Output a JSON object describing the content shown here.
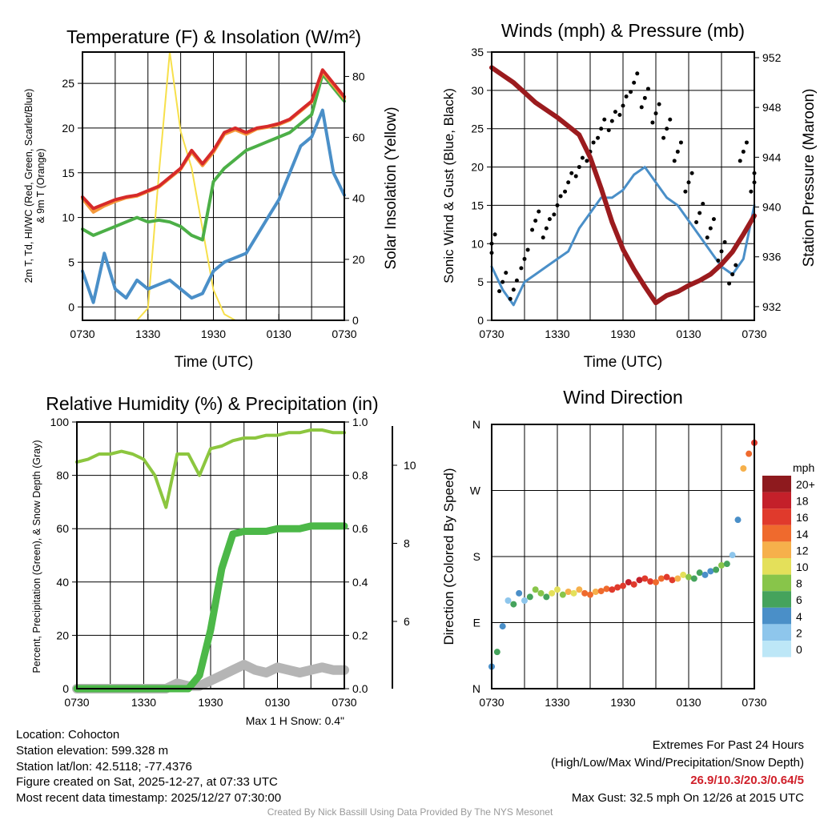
{
  "chart_data": [
    {
      "id": "temp",
      "type": "line",
      "title": "Temperature (F) & Insolation (W/m²)",
      "xlabel": "Time (UTC)",
      "ylabel_line1": "2m T, Td, HI/WC (Red, Green, Scarlet/Blue)",
      "ylabel_line2": "& 9m T (Orange)",
      "y2label": "Solar Insolation (Yellow)",
      "x_hours": [
        0,
        1,
        2,
        3,
        4,
        5,
        6,
        7,
        8,
        9,
        10,
        11,
        12,
        13,
        14,
        15,
        16,
        17,
        18,
        19,
        20,
        21,
        22,
        23,
        24
      ],
      "xticks": [
        "0730",
        "1330",
        "1930",
        "0130",
        "0730"
      ],
      "ylim": [
        -1.5,
        28.5
      ],
      "yticks": [
        0,
        5,
        10,
        15,
        20,
        25
      ],
      "y2lim": [
        0,
        88
      ],
      "y2ticks": [
        0,
        20,
        40,
        60,
        80
      ],
      "series": [
        {
          "name": "Solar Insolation",
          "axis": "y2",
          "color": "#f7e04b",
          "width": 2,
          "values": [
            0,
            0,
            0,
            0,
            0,
            0,
            4,
            48,
            88,
            62,
            50,
            30,
            10,
            2,
            0,
            0,
            0,
            0,
            0,
            0,
            0,
            0,
            0,
            0,
            0
          ]
        },
        {
          "name": "HI/WC",
          "axis": "y",
          "color": "#4a8fc8",
          "width": 4,
          "values": [
            4,
            0.5,
            6,
            2,
            1,
            3,
            2,
            2.5,
            3,
            2,
            1,
            1.5,
            4,
            5,
            5.5,
            6,
            8,
            10,
            12,
            15,
            18,
            19,
            22,
            15,
            12.5
          ]
        },
        {
          "name": "Dewpoint",
          "axis": "y",
          "color": "#4caf47",
          "width": 4,
          "values": [
            8.7,
            8,
            8.5,
            9,
            9.5,
            10,
            9.5,
            9.7,
            9.5,
            9,
            8,
            7.5,
            14,
            15.5,
            16.5,
            17.5,
            18,
            18.5,
            19,
            19.5,
            20.5,
            21.5,
            26,
            24.5,
            23
          ]
        },
        {
          "name": "9m Temperature",
          "axis": "y",
          "color": "#f59a3c",
          "width": 4,
          "values": [
            12.1,
            10.6,
            11.3,
            11.8,
            12.2,
            12.4,
            12.9,
            13.4,
            14.4,
            15.4,
            17.3,
            15.8,
            17.3,
            19.3,
            19.8,
            19.3,
            19.9,
            20.1,
            20.4,
            20.9,
            21.9,
            22.9,
            26.3,
            24.8,
            23.3
          ]
        },
        {
          "name": "Temperature",
          "axis": "y",
          "color": "#d62a2a",
          "width": 4,
          "values": [
            12.3,
            11,
            11.5,
            12,
            12.3,
            12.5,
            13,
            13.5,
            14.5,
            15.5,
            17.5,
            16,
            17.5,
            19.5,
            20,
            19.5,
            20,
            20.2,
            20.5,
            21,
            22,
            23,
            26.5,
            25,
            23.5
          ]
        }
      ]
    },
    {
      "id": "wind",
      "type": "line",
      "title": "Winds (mph) & Pressure (mb)",
      "xlabel": "Time (UTC)",
      "ylabel": "Sonic Wind & Gust (Blue, Black)",
      "y2label": "Station Pressure (Maroon)",
      "x_hours": [
        0,
        1,
        2,
        3,
        4,
        5,
        6,
        7,
        8,
        9,
        10,
        11,
        12,
        13,
        14,
        15,
        16,
        17,
        18,
        19,
        20,
        21,
        22,
        23,
        24
      ],
      "xticks": [
        "0730",
        "1330",
        "1930",
        "0130",
        "0730"
      ],
      "ylim": [
        0,
        35
      ],
      "yticks": [
        0,
        5,
        10,
        15,
        20,
        25,
        30,
        35
      ],
      "y2lim": [
        930.9,
        952.45
      ],
      "y2ticks": [
        932,
        936,
        940,
        944,
        948,
        952
      ],
      "series": [
        {
          "name": "Sonic Wind",
          "axis": "y",
          "color": "#4a8fc8",
          "width": 3,
          "style": "line",
          "values": [
            7,
            4,
            2,
            5,
            6,
            7,
            8,
            9,
            12,
            14,
            16,
            16,
            17,
            19,
            20,
            18,
            16,
            15,
            13,
            11,
            9,
            7,
            6,
            8,
            15
          ]
        },
        {
          "name": "Gust",
          "axis": "y",
          "color": "#000000",
          "width": 4,
          "style": "dots",
          "values": [
            10,
            5,
            4,
            8,
            13,
            12,
            15,
            18,
            20,
            22,
            25,
            26,
            28,
            31,
            29,
            27,
            25,
            22,
            18,
            14,
            12,
            9,
            6,
            22,
            18
          ]
        },
        {
          "name": "Station Pressure",
          "axis": "y2",
          "color": "#9b1b1e",
          "width": 6,
          "style": "line",
          "values": [
            951.2,
            950.6,
            950,
            949.2,
            948.4,
            947.8,
            947.2,
            946.5,
            945.8,
            944,
            941.5,
            938.8,
            936.6,
            935,
            933.6,
            932.3,
            932.9,
            933.2,
            933.7,
            934.1,
            934.6,
            935.4,
            936.4,
            937.8,
            939.3
          ]
        }
      ]
    },
    {
      "id": "rh",
      "type": "line",
      "title": "Relative Humidity (%) & Precipitation (in)",
      "ylabel": "Percent, Precipitation (Green), & Snow Depth (Gray)",
      "x_hours": [
        0,
        1,
        2,
        3,
        4,
        5,
        6,
        7,
        8,
        9,
        10,
        11,
        12,
        13,
        14,
        15,
        16,
        17,
        18,
        19,
        20,
        21,
        22,
        23,
        24
      ],
      "xticks": [
        "0730",
        "1330",
        "1930",
        "0130",
        "0730"
      ],
      "ylim": [
        0,
        100
      ],
      "yticks": [
        0,
        20,
        40,
        60,
        80,
        100
      ],
      "y2lim": [
        0,
        1.0
      ],
      "y2ticks": [
        "0.0",
        "0.2",
        "0.4",
        "0.6",
        "0.8",
        "1.0"
      ],
      "y3ticks": [
        6,
        8,
        10
      ],
      "note": "Max 1 H Snow: 0.4\"",
      "series": [
        {
          "name": "Snow Depth",
          "axis": "y",
          "color": "#b5b5b5",
          "width": 12,
          "values": [
            0,
            0,
            0,
            0,
            0,
            0,
            0,
            0,
            0,
            2,
            1,
            1,
            3,
            5,
            7,
            9,
            7,
            6,
            8,
            7,
            6,
            7,
            8,
            7,
            7
          ]
        },
        {
          "name": "Relative Humidity",
          "axis": "y",
          "color": "#8cc63f",
          "width": 4,
          "values": [
            85,
            86,
            88,
            88,
            89,
            88,
            86,
            80,
            68,
            88,
            88,
            80,
            90,
            91,
            93,
            94,
            94,
            95,
            95,
            96,
            96,
            97,
            97,
            96,
            96
          ]
        },
        {
          "name": "Precipitation",
          "axis": "y2",
          "color": "#4cb848",
          "width": 9,
          "values": [
            0,
            0,
            0,
            0,
            0,
            0,
            0,
            0,
            0,
            0,
            0,
            0.05,
            0.22,
            0.45,
            0.58,
            0.59,
            0.59,
            0.59,
            0.6,
            0.6,
            0.6,
            0.61,
            0.61,
            0.61,
            0.61
          ]
        }
      ]
    },
    {
      "id": "dir",
      "type": "scatter",
      "title": "Wind Direction",
      "ylabel": "Direction (Colored By Speed)",
      "xticks": [
        "0730",
        "1330",
        "1930",
        "0130",
        "0730"
      ],
      "ylim": [
        0,
        360
      ],
      "ylabels": [
        "N",
        "E",
        "S",
        "W",
        "N"
      ],
      "legend_title": "mph",
      "legend_labels": [
        "20+",
        "18",
        "16",
        "14",
        "12",
        "10",
        "8",
        "6",
        "4",
        "2",
        "0"
      ],
      "legend_colors": [
        "#8e1a1e",
        "#c4202a",
        "#e03a2c",
        "#ef6a2d",
        "#f6b04b",
        "#e4e05a",
        "#88c54a",
        "#45a35c",
        "#4a8fc8",
        "#8ec6ec",
        "#bde7f7"
      ],
      "x_hours": [
        0,
        0.5,
        1,
        1.5,
        2,
        2.5,
        3,
        3.5,
        4,
        4.5,
        5,
        5.5,
        6,
        6.5,
        7,
        7.5,
        8,
        8.5,
        9,
        9.5,
        10,
        10.5,
        11,
        11.5,
        12,
        12.5,
        13,
        13.5,
        14,
        14.5,
        15,
        15.5,
        16,
        16.5,
        17,
        17.5,
        18,
        18.5,
        19,
        19.5,
        20,
        20.5,
        21,
        21.5,
        22,
        22.5,
        23,
        23.5,
        24
      ],
      "directions": [
        30,
        50,
        85,
        120,
        115,
        130,
        120,
        125,
        135,
        130,
        125,
        130,
        135,
        128,
        132,
        130,
        135,
        130,
        128,
        132,
        133,
        136,
        135,
        138,
        140,
        145,
        142,
        148,
        150,
        146,
        145,
        150,
        152,
        148,
        150,
        155,
        152,
        150,
        158,
        155,
        160,
        162,
        168,
        170,
        182,
        230,
        300,
        320,
        335
      ],
      "speeds": [
        5,
        6,
        4,
        2,
        6,
        4,
        3,
        7,
        8,
        9,
        7,
        10,
        11,
        9,
        12,
        10,
        13,
        14,
        15,
        12,
        14,
        15,
        16,
        17,
        16,
        18,
        17,
        18,
        17,
        16,
        14,
        15,
        17,
        16,
        13,
        10,
        8,
        7,
        6,
        5,
        4,
        7,
        8,
        6,
        3,
        4,
        12,
        15,
        16
      ]
    }
  ],
  "info": {
    "location": "Location: Cohocton",
    "elevation": "Station elevation: 599.328 m",
    "latlon": "Station lat/lon: 42.5118; -77.4376",
    "created": "Figure created on Sat, 2025-12-27, at 07:33 UTC",
    "recent": "Most recent data timestamp: 2025/12/27 07:30:00"
  },
  "extremes": {
    "title": "Extremes For Past 24 Hours",
    "subtitle": "(High/Low/Max Wind/Precipitation/Snow Depth)",
    "values": "26.9/10.3/20.3/0.64/5",
    "gust": "Max Gust: 32.5 mph On 12/26 at 2015 UTC"
  },
  "credit": "Created By Nick Bassill Using Data Provided By The NYS Mesonet"
}
